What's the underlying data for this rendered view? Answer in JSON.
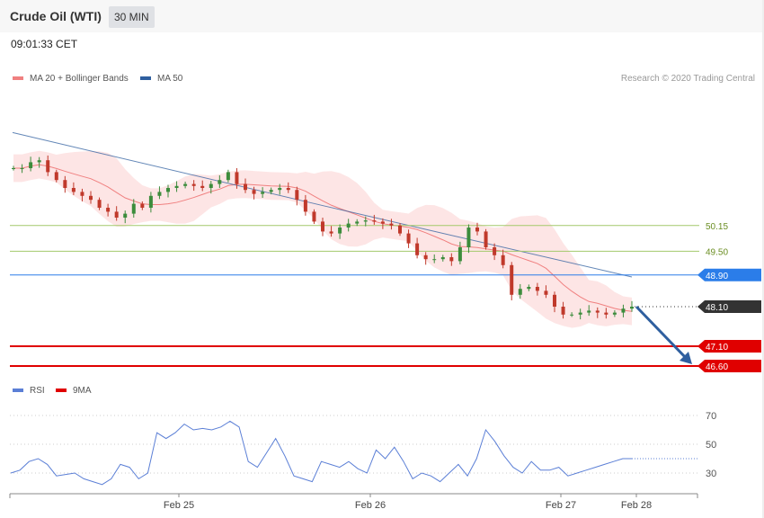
{
  "header": {
    "title": "Crude Oil (WTI)",
    "interval": "30 MIN"
  },
  "timestamp": "09:01:33 CET",
  "chart_data": [
    {
      "type": "candlestick",
      "legend": [
        {
          "name": "MA 20 + Bollinger Bands",
          "color": "#f08080"
        },
        {
          "name": "MA 50",
          "color": "#2f5f9f"
        }
      ],
      "credit": "Research © 2020 Trading Central",
      "ylim": [
        46.3,
        52.5
      ],
      "x_ticks": [
        "Feb 25",
        "Feb 26",
        "Feb 27",
        "Feb 28"
      ],
      "last_price": {
        "value": 48.1,
        "label": "48.10",
        "color": "#333333"
      },
      "levels": [
        {
          "value": 50.15,
          "label": "50.15",
          "kind": "resistance",
          "color": "#a3c96b"
        },
        {
          "value": 49.5,
          "label": "49.50",
          "kind": "resistance",
          "color": "#a3c96b"
        },
        {
          "value": 48.9,
          "label": "48.90",
          "kind": "pivot",
          "color": "#2b7de9"
        },
        {
          "value": 47.1,
          "label": "47.10",
          "kind": "support",
          "color": "#e00000"
        },
        {
          "value": 46.6,
          "label": "46.60",
          "kind": "support",
          "color": "#e00000"
        }
      ],
      "forecast_arrow": {
        "from": 48.1,
        "to": 46.6,
        "color": "#2f5f9f"
      },
      "close_path": [
        51.6,
        51.6,
        51.75,
        51.8,
        51.5,
        51.3,
        51.1,
        51.0,
        50.9,
        50.8,
        50.6,
        50.5,
        50.35,
        50.45,
        50.7,
        50.6,
        50.9,
        51.0,
        51.1,
        51.15,
        51.2,
        51.15,
        51.1,
        51.2,
        51.3,
        51.5,
        51.2,
        51.05,
        50.95,
        51.0,
        51.05,
        51.1,
        51.05,
        50.8,
        50.5,
        50.25,
        50.0,
        49.95,
        50.1,
        50.2,
        50.25,
        50.28,
        50.25,
        50.2,
        50.15,
        49.95,
        49.7,
        49.4,
        49.3,
        49.3,
        49.35,
        49.25,
        49.6,
        50.1,
        50.0,
        49.6,
        49.4,
        49.15,
        48.4,
        48.55,
        48.6,
        48.5,
        48.4,
        48.1,
        47.9,
        47.9,
        47.95,
        48.0,
        47.95,
        47.9,
        47.95,
        48.05,
        48.1
      ],
      "ma50": [
        52.5,
        50.65,
        48.85
      ],
      "rsi": {
        "legend": [
          {
            "name": "RSI",
            "color": "#5b7fd6"
          },
          {
            "name": "9MA",
            "color": "#e00000"
          }
        ],
        "ylim": [
          15,
          80
        ],
        "levels": [
          "70",
          "50",
          "30"
        ],
        "values": [
          30,
          32,
          38,
          40,
          36,
          28,
          29,
          30,
          26,
          24,
          22,
          26,
          36,
          34,
          26,
          30,
          58,
          54,
          58,
          64,
          60,
          61,
          60,
          62,
          66,
          62,
          38,
          34,
          44,
          54,
          42,
          28,
          26,
          24,
          38,
          36,
          34,
          38,
          33,
          30,
          46,
          40,
          48,
          38,
          26,
          30,
          28,
          24,
          30,
          36,
          28,
          40,
          60,
          52,
          42,
          34,
          30,
          38,
          32,
          32,
          34,
          28,
          30,
          32,
          34,
          36,
          38,
          40,
          40
        ]
      }
    }
  ]
}
